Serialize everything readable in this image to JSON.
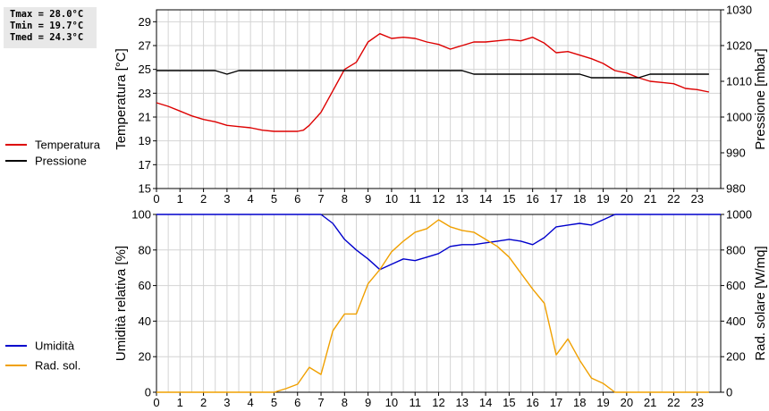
{
  "stats": {
    "tmax": "Tmax = 28.0°C",
    "tmin": "Tmin = 19.7°C",
    "tmed": "Tmed = 24.3°C"
  },
  "chart_data": [
    {
      "type": "line",
      "xlabel": "",
      "ylabel": "Temperatura [°C]",
      "y2label": "Pressione [mbar]",
      "xlim": [
        0,
        24
      ],
      "xticks": [
        "0",
        "1",
        "2",
        "3",
        "4",
        "5",
        "6",
        "7",
        "8",
        "9",
        "10",
        "11",
        "12",
        "13",
        "14",
        "15",
        "16",
        "17",
        "18",
        "19",
        "20",
        "21",
        "22",
        "23"
      ],
      "ylim": [
        15,
        30
      ],
      "yticks": [
        "15",
        "17",
        "19",
        "21",
        "23",
        "25",
        "27",
        "29"
      ],
      "y2lim": [
        980,
        1030
      ],
      "y2ticks": [
        "980",
        "990",
        "1000",
        "1010",
        "1020",
        "1030"
      ],
      "grid": true,
      "legend_placement": "left",
      "series": [
        {
          "name": "Temperatura",
          "axis": "left",
          "color": "#dd0000",
          "x": [
            0,
            0.5,
            1,
            1.5,
            2,
            2.5,
            3,
            3.5,
            4,
            4.5,
            5,
            5.5,
            6,
            6.25,
            6.5,
            7,
            7.5,
            8,
            8.5,
            9,
            9.5,
            10,
            10.5,
            11,
            11.5,
            12,
            12.5,
            13,
            13.5,
            14,
            14.5,
            15,
            15.5,
            16,
            16.5,
            17,
            17.5,
            18,
            18.5,
            19,
            19.5,
            20,
            20.5,
            21,
            21.5,
            22,
            22.5,
            23,
            23.5
          ],
          "values": [
            22.2,
            21.9,
            21.5,
            21.1,
            20.8,
            20.6,
            20.3,
            20.2,
            20.1,
            19.9,
            19.8,
            19.8,
            19.8,
            19.9,
            20.3,
            21.4,
            23.2,
            25.0,
            25.6,
            27.3,
            28.0,
            27.6,
            27.7,
            27.6,
            27.3,
            27.1,
            26.7,
            27.0,
            27.3,
            27.3,
            27.4,
            27.5,
            27.4,
            27.7,
            27.2,
            26.4,
            26.5,
            26.2,
            25.9,
            25.5,
            24.9,
            24.7,
            24.3,
            24.0,
            23.9,
            23.8,
            23.4,
            23.3,
            23.1
          ]
        },
        {
          "name": "Pressione",
          "axis": "right",
          "color": "#000000",
          "x": [
            0,
            2.5,
            3,
            3.5,
            13,
            13.5,
            18,
            18.5,
            20.5,
            21,
            23.5
          ],
          "values": [
            1013,
            1013,
            1012,
            1013,
            1013,
            1012,
            1012,
            1011,
            1011,
            1012,
            1012
          ]
        }
      ]
    },
    {
      "type": "line",
      "xlabel": "",
      "ylabel": "Umidità relativa [%]",
      "y2label": "Rad. solare [W/mq]",
      "xlim": [
        0,
        24
      ],
      "xticks": [
        "0",
        "1",
        "2",
        "3",
        "4",
        "5",
        "6",
        "7",
        "8",
        "9",
        "10",
        "11",
        "12",
        "13",
        "14",
        "15",
        "16",
        "17",
        "18",
        "19",
        "20",
        "21",
        "22",
        "23"
      ],
      "ylim": [
        0,
        100
      ],
      "yticks": [
        "0",
        "20",
        "40",
        "60",
        "80",
        "100"
      ],
      "y2lim": [
        0,
        1000
      ],
      "y2ticks": [
        "0",
        "200",
        "400",
        "600",
        "800",
        "1000"
      ],
      "grid": true,
      "legend_placement": "left",
      "series": [
        {
          "name": "Umidità",
          "axis": "left",
          "color": "#0000cc",
          "x": [
            0,
            7,
            7.5,
            8,
            8.5,
            9,
            9.5,
            10,
            10.5,
            11,
            11.5,
            12,
            12.5,
            13,
            13.5,
            14,
            14.5,
            15,
            15.5,
            16,
            16.5,
            17,
            17.5,
            18,
            18.5,
            19,
            19.5,
            20,
            24
          ],
          "values": [
            100,
            100,
            95,
            86,
            80,
            75,
            69,
            72,
            75,
            74,
            76,
            78,
            82,
            83,
            83,
            84,
            85,
            86,
            85,
            83,
            87,
            93,
            94,
            95,
            94,
            97,
            100,
            100,
            100
          ]
        },
        {
          "name": "Rad. sol.",
          "axis": "right",
          "color": "#f0a000",
          "x": [
            0,
            5,
            5.5,
            6,
            6.5,
            7,
            7.5,
            8,
            8.5,
            9,
            9.5,
            10,
            10.5,
            11,
            11.5,
            12,
            12.5,
            13,
            13.5,
            14,
            14.5,
            15,
            15.5,
            16,
            16.5,
            17,
            17.5,
            18,
            18.5,
            19,
            19.5,
            20,
            23.5
          ],
          "values": [
            0,
            0,
            20,
            45,
            140,
            100,
            345,
            440,
            440,
            610,
            690,
            790,
            850,
            900,
            920,
            970,
            930,
            910,
            900,
            860,
            820,
            760,
            670,
            580,
            500,
            210,
            300,
            180,
            80,
            50,
            0,
            0,
            0
          ]
        }
      ]
    }
  ]
}
